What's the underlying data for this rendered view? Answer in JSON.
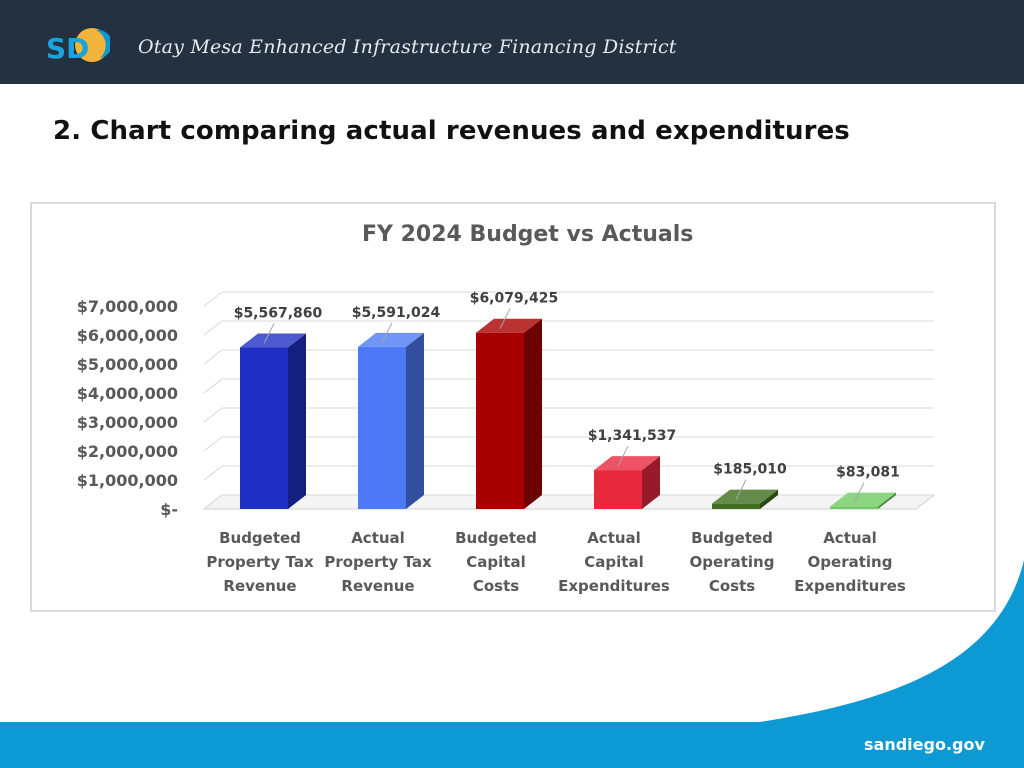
{
  "header": {
    "logo_text": "SD",
    "title": "Otay Mesa Enhanced Infrastructure Financing District"
  },
  "page": {
    "heading": "2. Chart comparing actual revenues and expenditures"
  },
  "footer": {
    "url": "sandiego.gov"
  },
  "colors": {
    "header_bg": "#243140",
    "footer_blue": "#0d99d4",
    "series": [
      "#1f2fc4",
      "#4d79f5",
      "#a80000",
      "#e8283d",
      "#3f6e1e",
      "#6fcb63"
    ]
  },
  "chart_data": {
    "type": "bar",
    "title": "FY 2024 Budget vs Actuals",
    "style": "3d",
    "categories": [
      [
        "Budgeted",
        "Property Tax",
        "Revenue"
      ],
      [
        "Actual",
        "Property Tax",
        "Revenue"
      ],
      [
        "Budgeted",
        "Capital",
        "Costs"
      ],
      [
        "Actual",
        "Capital",
        "Expenditures"
      ],
      [
        "Budgeted",
        "Operating",
        "Costs"
      ],
      [
        "Actual",
        "Operating",
        "Expenditures"
      ]
    ],
    "values": [
      5567860,
      5591024,
      6079425,
      1341537,
      185010,
      83081
    ],
    "data_labels": [
      "$5,567,860",
      "$5,591,024",
      "$6,079,425",
      "$1,341,537",
      "$185,010",
      "$83,081"
    ],
    "yticks": [
      0,
      1000000,
      2000000,
      3000000,
      4000000,
      5000000,
      6000000,
      7000000
    ],
    "ytick_labels": [
      "$-",
      "$1,000,000",
      "$2,000,000",
      "$3,000,000",
      "$4,000,000",
      "$5,000,000",
      "$6,000,000",
      "$7,000,000"
    ],
    "ylim": [
      0,
      7000000
    ],
    "grid": true,
    "legend": "none"
  }
}
